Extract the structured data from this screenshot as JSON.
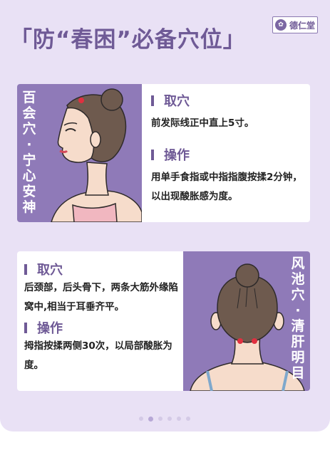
{
  "title": "「防“春困”必备穴位」",
  "logo": {
    "name": "德仁堂"
  },
  "cards": [
    {
      "side_label": "百会穴·宁心安神",
      "sections": [
        {
          "heading": "取穴",
          "body": "前发际线正中直上5寸。"
        },
        {
          "heading": "操作",
          "body": "用单手食指或中指指腹按揉2分钟，以出现酸胀感为度。"
        }
      ]
    },
    {
      "side_label": "风池穴·清肝明目",
      "sections": [
        {
          "heading": "取穴",
          "body": "后颈部，后头骨下，两条大筋外缘陷窝中,相当于耳垂齐平。"
        },
        {
          "heading": "操作",
          "body": "拇指按揉两侧30次，以局部酸胀为度。"
        }
      ]
    }
  ],
  "pagination": {
    "total": 6,
    "active": 1
  },
  "colors": {
    "accent": "#6f5a96",
    "panel": "#8f7ab8",
    "background": "#e9e1f5",
    "acupoint": "#e03040"
  }
}
